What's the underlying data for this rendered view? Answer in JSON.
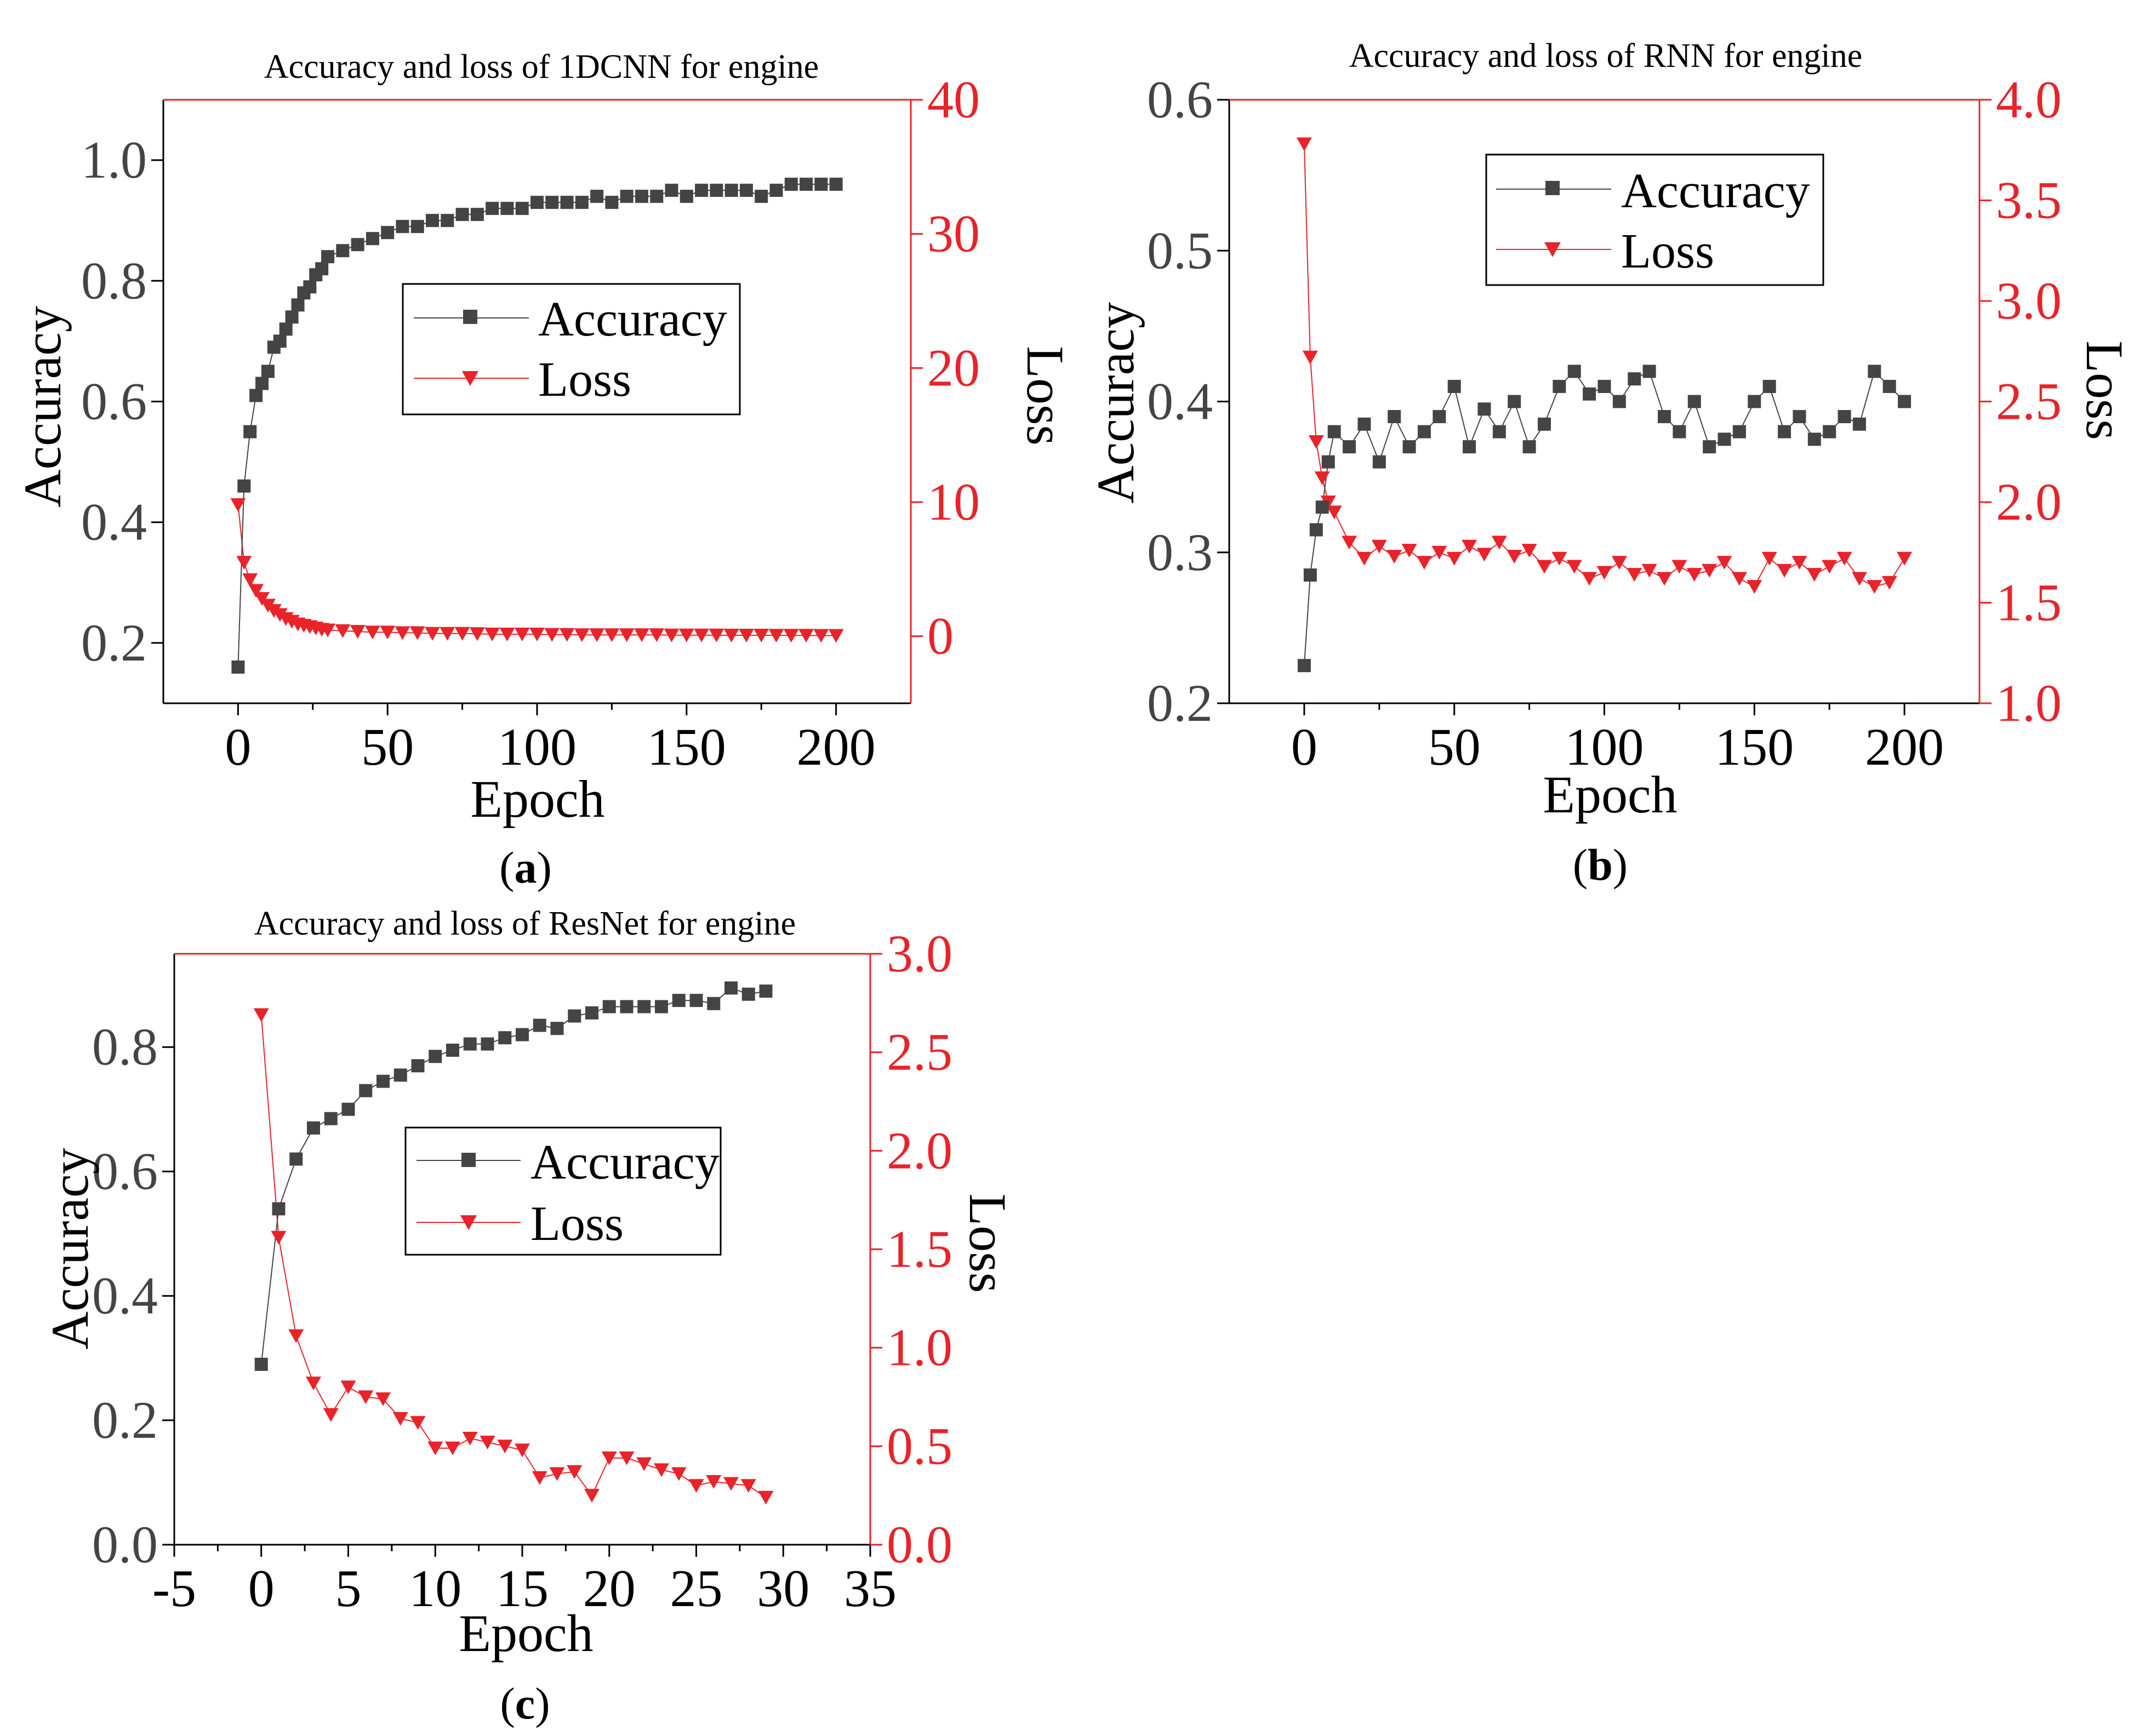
{
  "colors": {
    "accuracy": "#444444",
    "loss": "#e8232a",
    "frame": "#000000",
    "right_axis": "#e8232a"
  },
  "chart_data": [
    {
      "id": "a",
      "type": "line",
      "title": "Accuracy and loss of 1DCNN for engine",
      "caption_letter": "a",
      "xlabel": "Epoch",
      "ylabel_left": "Accuracy",
      "ylabel_right": "Loss",
      "xlim": [
        -25,
        225
      ],
      "ylim_left": [
        0.1,
        1.1
      ],
      "ylim_right": [
        -5,
        40
      ],
      "x_ticks": [
        "0",
        "50",
        "100",
        "150",
        "200"
      ],
      "x_tick_values": [
        0,
        50,
        100,
        150,
        200
      ],
      "y_left_ticks": [
        "0.2",
        "0.4",
        "0.6",
        "0.8",
        "1.0"
      ],
      "y_left_tick_values": [
        0.2,
        0.4,
        0.6,
        0.8,
        1.0
      ],
      "y_right_ticks": [
        "0",
        "10",
        "20",
        "30",
        "40"
      ],
      "y_right_tick_values": [
        0,
        10,
        20,
        30,
        40
      ],
      "legend": [
        "Accuracy",
        "Loss"
      ],
      "series": [
        {
          "name": "Accuracy",
          "x": [
            0,
            2,
            4,
            6,
            8,
            10,
            12,
            14,
            16,
            18,
            20,
            22,
            24,
            26,
            28,
            30,
            35,
            40,
            45,
            50,
            55,
            60,
            65,
            70,
            75,
            80,
            85,
            90,
            95,
            100,
            105,
            110,
            115,
            120,
            125,
            130,
            135,
            140,
            145,
            150,
            155,
            160,
            165,
            170,
            175,
            180,
            185,
            190,
            195,
            200
          ],
          "values": [
            0.16,
            0.46,
            0.55,
            0.61,
            0.63,
            0.65,
            0.69,
            0.7,
            0.72,
            0.74,
            0.76,
            0.78,
            0.79,
            0.81,
            0.82,
            0.84,
            0.85,
            0.86,
            0.87,
            0.88,
            0.89,
            0.89,
            0.9,
            0.9,
            0.91,
            0.91,
            0.92,
            0.92,
            0.92,
            0.93,
            0.93,
            0.93,
            0.93,
            0.94,
            0.93,
            0.94,
            0.94,
            0.94,
            0.95,
            0.94,
            0.95,
            0.95,
            0.95,
            0.95,
            0.94,
            0.95,
            0.96,
            0.96,
            0.96,
            0.96
          ]
        },
        {
          "name": "Loss",
          "x": [
            0,
            2,
            4,
            6,
            8,
            10,
            12,
            14,
            16,
            18,
            20,
            22,
            24,
            26,
            28,
            30,
            35,
            40,
            45,
            50,
            55,
            60,
            65,
            70,
            75,
            80,
            85,
            90,
            95,
            100,
            105,
            110,
            115,
            120,
            125,
            130,
            135,
            140,
            145,
            150,
            155,
            160,
            165,
            170,
            175,
            180,
            185,
            190,
            195,
            200
          ],
          "values": [
            9.8,
            5.5,
            4.2,
            3.4,
            2.8,
            2.3,
            1.9,
            1.6,
            1.3,
            1.1,
            0.9,
            0.8,
            0.7,
            0.6,
            0.5,
            0.45,
            0.4,
            0.35,
            0.3,
            0.3,
            0.25,
            0.25,
            0.2,
            0.2,
            0.2,
            0.18,
            0.15,
            0.15,
            0.15,
            0.15,
            0.12,
            0.12,
            0.1,
            0.1,
            0.1,
            0.1,
            0.1,
            0.1,
            0.08,
            0.08,
            0.08,
            0.08,
            0.07,
            0.07,
            0.07,
            0.06,
            0.06,
            0.06,
            0.05,
            0.05
          ]
        }
      ]
    },
    {
      "id": "b",
      "type": "line",
      "title": "Accuracy and loss of RNN for engine",
      "caption_letter": "b",
      "xlabel": "Epoch",
      "ylabel_left": "Accuracy",
      "ylabel_right": "Loss",
      "xlim": [
        -25,
        225
      ],
      "ylim_left": [
        0.2,
        0.6
      ],
      "ylim_right": [
        1.0,
        4.0
      ],
      "x_ticks": [
        "0",
        "50",
        "100",
        "150",
        "200"
      ],
      "x_tick_values": [
        0,
        50,
        100,
        150,
        200
      ],
      "y_left_ticks": [
        "0.2",
        "0.3",
        "0.4",
        "0.5",
        "0.6"
      ],
      "y_left_tick_values": [
        0.2,
        0.3,
        0.4,
        0.5,
        0.6
      ],
      "y_right_ticks": [
        "1.0",
        "1.5",
        "2.0",
        "2.5",
        "3.0",
        "3.5",
        "4.0"
      ],
      "y_right_tick_values": [
        1.0,
        1.5,
        2.0,
        2.5,
        3.0,
        3.5,
        4.0
      ],
      "legend": [
        "Accuracy",
        "Loss"
      ],
      "series": [
        {
          "name": "Accuracy",
          "x": [
            0,
            2,
            4,
            6,
            8,
            10,
            15,
            20,
            25,
            30,
            35,
            40,
            45,
            50,
            55,
            60,
            65,
            70,
            75,
            80,
            85,
            90,
            95,
            100,
            105,
            110,
            115,
            120,
            125,
            130,
            135,
            140,
            145,
            150,
            155,
            160,
            165,
            170,
            175,
            180,
            185,
            190,
            195,
            200
          ],
          "values": [
            0.225,
            0.285,
            0.315,
            0.33,
            0.36,
            0.38,
            0.37,
            0.385,
            0.36,
            0.39,
            0.37,
            0.38,
            0.39,
            0.41,
            0.37,
            0.395,
            0.38,
            0.4,
            0.37,
            0.385,
            0.41,
            0.42,
            0.405,
            0.41,
            0.4,
            0.415,
            0.42,
            0.39,
            0.38,
            0.4,
            0.37,
            0.375,
            0.38,
            0.4,
            0.41,
            0.38,
            0.39,
            0.375,
            0.38,
            0.39,
            0.385,
            0.42,
            0.41,
            0.4
          ]
        },
        {
          "name": "Loss",
          "x": [
            0,
            2,
            4,
            6,
            8,
            10,
            15,
            20,
            25,
            30,
            35,
            40,
            45,
            50,
            55,
            60,
            65,
            70,
            75,
            80,
            85,
            90,
            95,
            100,
            105,
            110,
            115,
            120,
            125,
            130,
            135,
            140,
            145,
            150,
            155,
            160,
            165,
            170,
            175,
            180,
            185,
            190,
            195,
            200
          ],
          "values": [
            3.78,
            2.72,
            2.3,
            2.12,
            2.0,
            1.95,
            1.8,
            1.72,
            1.78,
            1.73,
            1.76,
            1.7,
            1.75,
            1.72,
            1.78,
            1.74,
            1.8,
            1.73,
            1.76,
            1.68,
            1.72,
            1.68,
            1.62,
            1.65,
            1.7,
            1.64,
            1.66,
            1.62,
            1.68,
            1.64,
            1.66,
            1.7,
            1.62,
            1.58,
            1.72,
            1.66,
            1.7,
            1.64,
            1.68,
            1.72,
            1.62,
            1.58,
            1.6,
            1.72
          ]
        }
      ]
    },
    {
      "id": "c",
      "type": "line",
      "title": "Accuracy and loss of ResNet for engine",
      "caption_letter": "c",
      "xlabel": "Epoch",
      "ylabel_left": "Accuracy",
      "ylabel_right": "Loss",
      "xlim": [
        -5,
        35
      ],
      "ylim_left": [
        0.0,
        0.95
      ],
      "ylim_right": [
        0.0,
        3.0
      ],
      "x_ticks": [
        "-5",
        "0",
        "5",
        "10",
        "15",
        "20",
        "25",
        "30",
        "35"
      ],
      "x_tick_values": [
        -5,
        0,
        5,
        10,
        15,
        20,
        25,
        30,
        35
      ],
      "y_left_ticks": [
        "0.0",
        "0.2",
        "0.4",
        "0.6",
        "0.8"
      ],
      "y_left_tick_values": [
        0.0,
        0.2,
        0.4,
        0.6,
        0.8
      ],
      "y_right_ticks": [
        "0.0",
        "0.5",
        "1.0",
        "1.5",
        "2.0",
        "2.5",
        "3.0"
      ],
      "y_right_tick_values": [
        0.0,
        0.5,
        1.0,
        1.5,
        2.0,
        2.5,
        3.0
      ],
      "legend": [
        "Accuracy",
        "Loss"
      ],
      "series": [
        {
          "name": "Accuracy",
          "x": [
            0,
            1,
            2,
            3,
            4,
            5,
            6,
            7,
            8,
            9,
            10,
            11,
            12,
            13,
            14,
            15,
            16,
            17,
            18,
            19,
            20,
            21,
            22,
            23,
            24,
            25,
            26,
            27,
            28,
            29
          ],
          "values": [
            0.29,
            0.54,
            0.62,
            0.67,
            0.685,
            0.7,
            0.73,
            0.745,
            0.755,
            0.77,
            0.785,
            0.795,
            0.805,
            0.805,
            0.815,
            0.82,
            0.835,
            0.83,
            0.85,
            0.855,
            0.865,
            0.865,
            0.865,
            0.865,
            0.875,
            0.875,
            0.87,
            0.895,
            0.885,
            0.89
          ]
        },
        {
          "name": "Loss",
          "x": [
            0,
            1,
            2,
            3,
            4,
            5,
            6,
            7,
            8,
            9,
            10,
            11,
            12,
            13,
            14,
            15,
            16,
            17,
            18,
            19,
            20,
            21,
            22,
            23,
            24,
            25,
            26,
            27,
            28,
            29
          ],
          "values": [
            2.69,
            1.56,
            1.06,
            0.82,
            0.66,
            0.8,
            0.75,
            0.74,
            0.64,
            0.62,
            0.49,
            0.49,
            0.54,
            0.52,
            0.5,
            0.48,
            0.34,
            0.36,
            0.37,
            0.25,
            0.44,
            0.44,
            0.41,
            0.38,
            0.36,
            0.3,
            0.32,
            0.31,
            0.3,
            0.24
          ]
        }
      ]
    }
  ]
}
